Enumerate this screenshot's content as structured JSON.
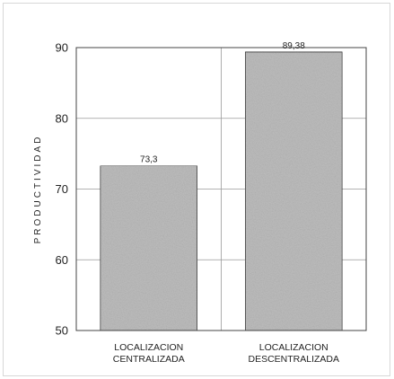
{
  "chart_data": {
    "type": "bar",
    "title": "",
    "xlabel": "",
    "ylabel": "PRODUCTIVIDAD",
    "categories": [
      [
        "LOCALIZACION",
        "CENTRALIZADA"
      ],
      [
        "LOCALIZACION",
        "DESCENTRALIZADA"
      ]
    ],
    "values": [
      73.3,
      89.38
    ],
    "data_labels": [
      "73,3",
      "89,38"
    ],
    "ylim": [
      50,
      90
    ],
    "yticks": [
      50,
      60,
      70,
      80,
      90
    ],
    "grid": true,
    "bar_color": "#bdbdbd"
  }
}
